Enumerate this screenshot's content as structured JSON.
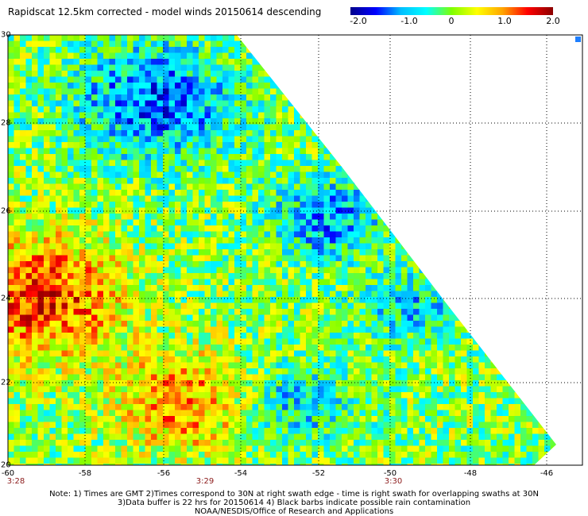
{
  "title": "Rapidscat 12.5km corrected - model winds 20150614 descending",
  "colorbar": {
    "ticks": [
      "-2.0",
      "-1.0",
      "0",
      "1.0",
      "2.0"
    ],
    "min": -2.0,
    "max": 2.0,
    "colors": [
      "#00008b",
      "#0000ff",
      "#00bfff",
      "#00ffff",
      "#7fff00",
      "#ffff00",
      "#ffa500",
      "#ff0000",
      "#8b0000"
    ]
  },
  "axes": {
    "y_ticks": [
      "30",
      "28",
      "26",
      "24",
      "22",
      "20"
    ],
    "x_ticks": [
      "-60",
      "-58",
      "-56",
      "-54",
      "-52",
      "-50",
      "-48",
      "-46"
    ],
    "lat_range": [
      20,
      30
    ],
    "lon_range": [
      -60,
      -45
    ]
  },
  "times": [
    "3:28",
    "3:29",
    "3:30"
  ],
  "notes": [
    "Note: 1) Times are GMT 2)Times correspond to 30N at right swath edge - time is right swath for overlapping swaths at 30N",
    "3)Data buffer is 22 hrs for 20150614 4) Black barbs indicate possible rain contamination",
    "NOAA/NESDIS/Office of Research and Applications"
  ]
}
